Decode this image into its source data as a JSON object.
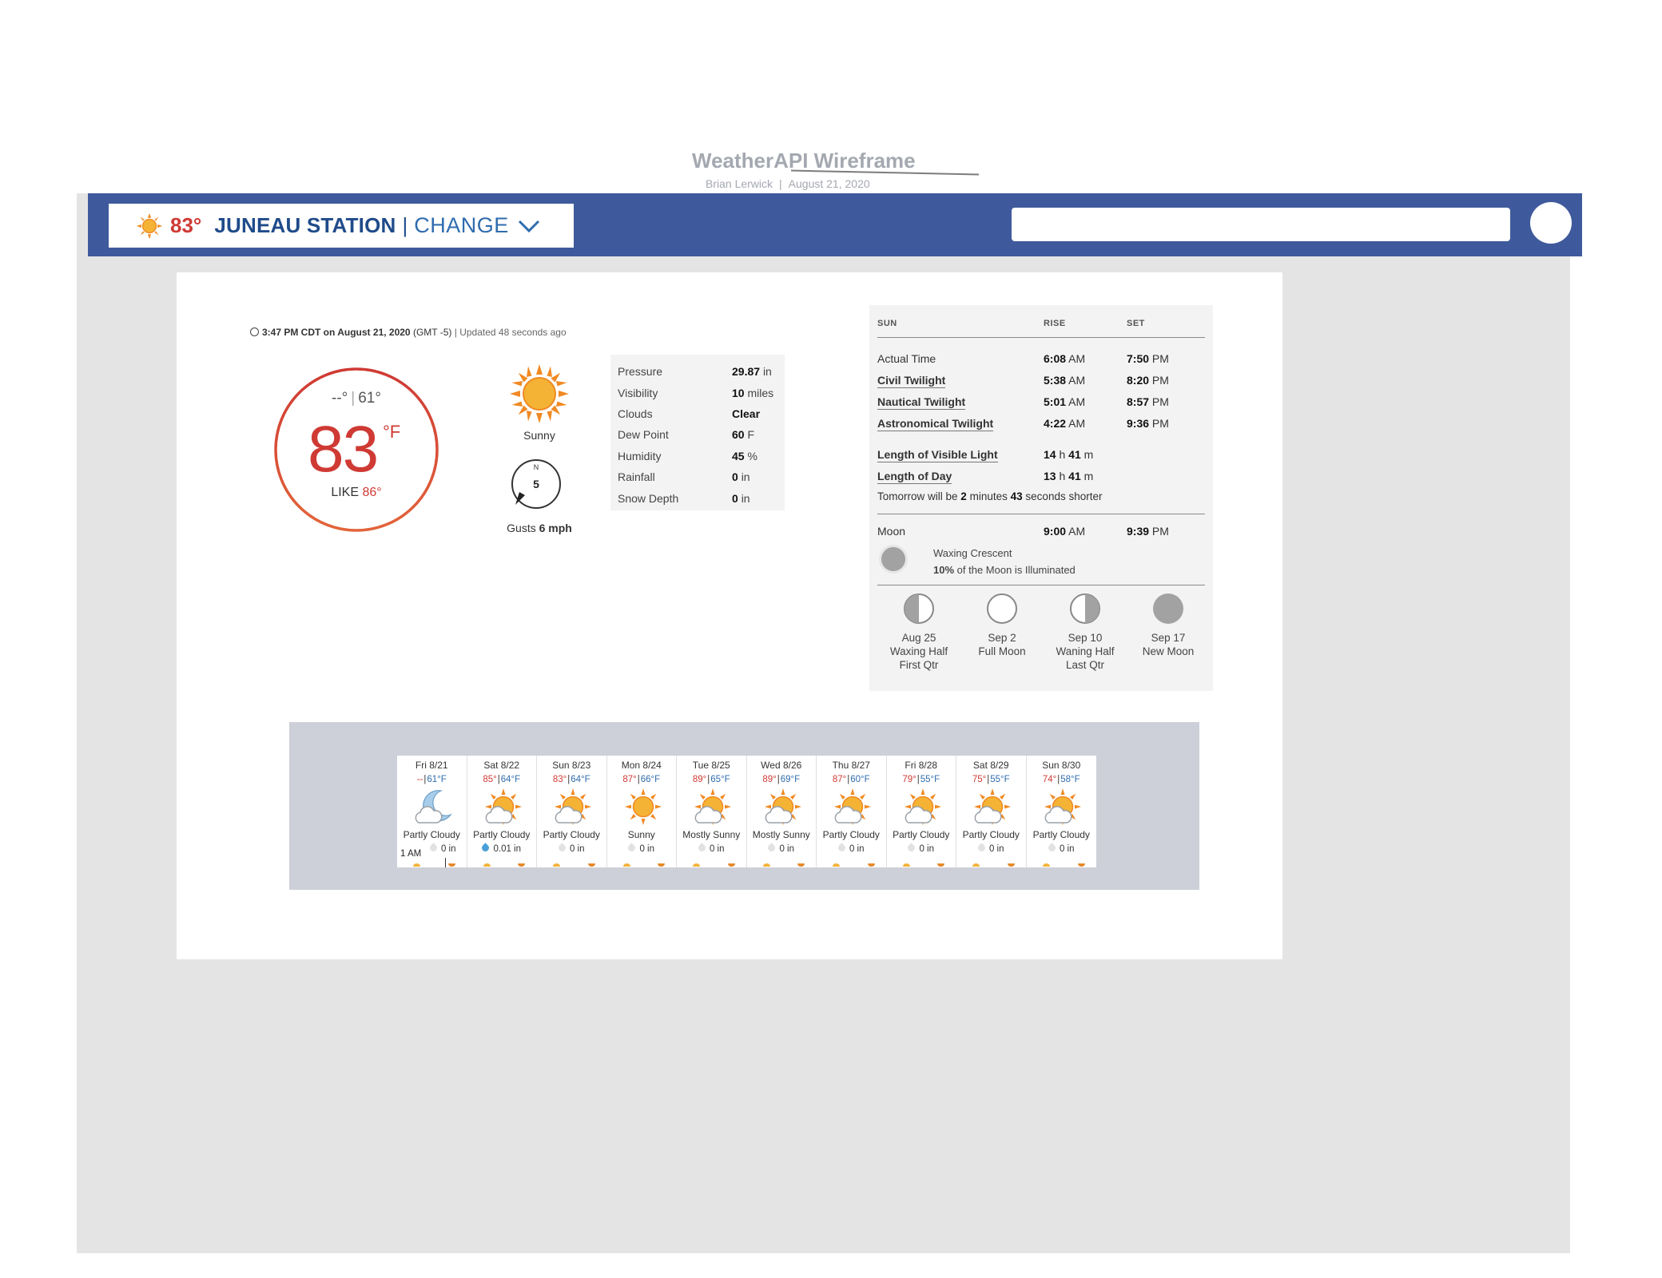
{
  "wireframe": {
    "title": "WeatherAPI Wireframe",
    "author": "Brian Lerwick",
    "date": "August 21, 2020"
  },
  "navbar": {
    "temp": "83°",
    "station": "JUNEAU STATION",
    "separator": "|",
    "change_label": "CHANGE",
    "search_placeholder": ""
  },
  "current": {
    "time": "3:47 PM CDT on August 21, 2020",
    "tz": "(GMT -5)",
    "updated": "Updated 48 seconds ago",
    "high": "--°",
    "low": "61°",
    "temp": "83",
    "unit": "°F",
    "feels_label": "LIKE",
    "feels_value": "86°",
    "condition": "Sunny",
    "wind_dir": "N",
    "wind_speed": "5",
    "gusts_label": "Gusts",
    "gusts_value": "6 mph"
  },
  "stats": [
    {
      "label": "Pressure",
      "value": "29.87",
      "unit": "in"
    },
    {
      "label": "Visibility",
      "value": "10",
      "unit": "miles"
    },
    {
      "label": "Clouds",
      "value": "Clear",
      "unit": ""
    },
    {
      "label": "Dew Point",
      "value": "60",
      "unit": "F"
    },
    {
      "label": "Humidity",
      "value": "45",
      "unit": "%"
    },
    {
      "label": "Rainfall",
      "value": "0",
      "unit": "in"
    },
    {
      "label": "Snow Depth",
      "value": "0",
      "unit": "in"
    }
  ],
  "sun": {
    "headers": {
      "label": "SUN",
      "rise": "RISE",
      "set": "SET"
    },
    "rows": [
      {
        "label": "Actual Time",
        "rise": "6:08",
        "rise_ampm": "AM",
        "set": "7:50",
        "set_ampm": "PM"
      },
      {
        "label": "Civil Twilight",
        "rise": "5:38",
        "rise_ampm": "AM",
        "set": "8:20",
        "set_ampm": "PM"
      },
      {
        "label": "Nautical Twilight",
        "rise": "5:01",
        "rise_ampm": "AM",
        "set": "8:57",
        "set_ampm": "PM"
      },
      {
        "label": "Astronomical Twilight",
        "rise": "4:22",
        "rise_ampm": "AM",
        "set": "9:36",
        "set_ampm": "PM"
      }
    ],
    "visible_light": {
      "label": "Length of Visible Light",
      "h": "14",
      "h_unit": "h",
      "m": "41",
      "m_unit": "m"
    },
    "day_length": {
      "label": "Length of Day",
      "h": "13",
      "h_unit": "h",
      "m": "41",
      "m_unit": "m"
    },
    "tomorrow": {
      "prefix": "Tomorrow will be",
      "minutes": "2",
      "mid": "minutes",
      "seconds": "43",
      "suffix": "seconds shorter"
    }
  },
  "moon": {
    "label": "Moon",
    "rise": "9:00",
    "rise_ampm": "AM",
    "set": "9:39",
    "set_ampm": "PM",
    "phase_name": "Waxing Crescent",
    "illum_pct": "10%",
    "illum_text": "of the Moon is Illuminated",
    "phases": [
      {
        "date": "Aug 25",
        "name1": "Waxing Half",
        "name2": "First Qtr"
      },
      {
        "date": "Sep 2",
        "name1": "Full Moon",
        "name2": ""
      },
      {
        "date": "Sep 10",
        "name1": "Waning Half",
        "name2": "Last Qtr"
      },
      {
        "date": "Sep 17",
        "name1": "New Moon",
        "name2": ""
      }
    ]
  },
  "forecast": {
    "hour_label": "1 AM",
    "days": [
      {
        "day": "Fri 8/21",
        "hi": "--",
        "lo": "61°F",
        "cond": "Partly Cloudy",
        "precip": "0 in",
        "icon": "moon-cloud-icon",
        "wet": false
      },
      {
        "day": "Sat 8/22",
        "hi": "85°",
        "lo": "64°F",
        "cond": "Partly Cloudy",
        "precip": "0.01 in",
        "icon": "sun-cloud-icon",
        "wet": true
      },
      {
        "day": "Sun 8/23",
        "hi": "83°",
        "lo": "64°F",
        "cond": "Partly Cloudy",
        "precip": "0 in",
        "icon": "sun-cloud-icon",
        "wet": false
      },
      {
        "day": "Mon 8/24",
        "hi": "87°",
        "lo": "66°F",
        "cond": "Sunny",
        "precip": "0 in",
        "icon": "sun-icon",
        "wet": false
      },
      {
        "day": "Tue 8/25",
        "hi": "89°",
        "lo": "65°F",
        "cond": "Mostly Sunny",
        "precip": "0 in",
        "icon": "sun-cloud-icon",
        "wet": false
      },
      {
        "day": "Wed 8/26",
        "hi": "89°",
        "lo": "69°F",
        "cond": "Mostly Sunny",
        "precip": "0 in",
        "icon": "sun-cloud-icon",
        "wet": false
      },
      {
        "day": "Thu 8/27",
        "hi": "87°",
        "lo": "60°F",
        "cond": "Partly Cloudy",
        "precip": "0 in",
        "icon": "sun-cloud-icon",
        "wet": false
      },
      {
        "day": "Fri 8/28",
        "hi": "79°",
        "lo": "55°F",
        "cond": "Partly Cloudy",
        "precip": "0 in",
        "icon": "sun-cloud-icon",
        "wet": false
      },
      {
        "day": "Sat 8/29",
        "hi": "75°",
        "lo": "55°F",
        "cond": "Partly Cloudy",
        "precip": "0 in",
        "icon": "sun-cloud-icon",
        "wet": false
      },
      {
        "day": "Sun 8/30",
        "hi": "74°",
        "lo": "58°F",
        "cond": "Partly Cloudy",
        "precip": "0 in",
        "icon": "sun-cloud-icon",
        "wet": false
      }
    ]
  },
  "colors": {
    "navbar": "#3f5a9c",
    "hot": "#cf3a34",
    "cool": "#2f6cae",
    "sun": "#f5a623"
  }
}
